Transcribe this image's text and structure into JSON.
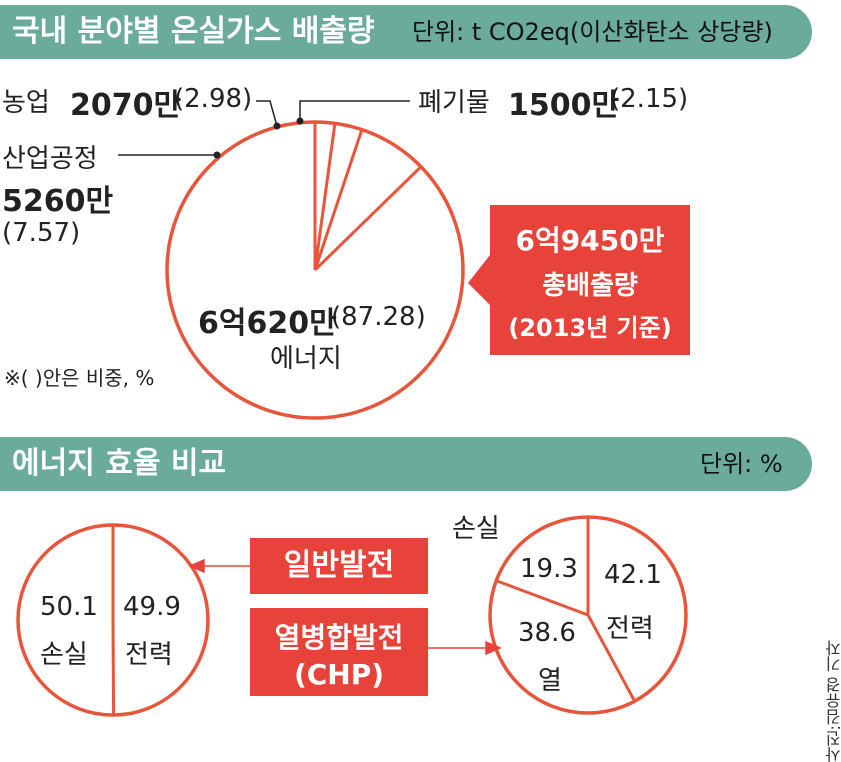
{
  "header1": {
    "title": "국내 분야별 온실가스 배출량",
    "unit": "단위: t CO2eq(이산화탄소 상당량)"
  },
  "header2": {
    "title": "에너지 효율 비교",
    "unit": "단위: %"
  },
  "labels": {
    "agri_name": "농업",
    "agri_value": "2070만",
    "agri_pct": "(2.98)",
    "waste_name": "폐기물",
    "waste_value": "1500만",
    "waste_pct": "(2.15)",
    "industry_name": "산업공정",
    "industry_value": "5260만",
    "industry_pct": "(7.57)",
    "energy_value": "6억620만",
    "energy_pct": "(87.28)",
    "energy_name": "에너지",
    "note": "※(   )안은 비중, %"
  },
  "total_box": {
    "line1": "6억9450만",
    "line2": "총배출량",
    "line3": "(2013년 기준)"
  },
  "efficiency": {
    "general_label": "일반발전",
    "chp_label1": "열병합발전",
    "chp_label2": "(CHP)",
    "left_loss_value": "50.1",
    "left_loss_name": "손실",
    "left_power_value": "49.9",
    "left_power_name": "전력",
    "right_loss_name": "손실",
    "right_loss_value": "19.3",
    "right_power_value": "42.1",
    "right_power_name": "전력",
    "right_heat_value": "38.6",
    "right_heat_name": "열"
  },
  "credit": "사진:김유경 기자",
  "colors": {
    "header": "#6aab9c",
    "accent": "#e8433a",
    "pie_stroke": "#e8553a"
  },
  "chart_data": [
    {
      "type": "pie",
      "title": "국내 분야별 온실가스 배출량",
      "unit": "t CO2eq",
      "categories": [
        "에너지",
        "산업공정",
        "농업",
        "폐기물"
      ],
      "values": [
        87.28,
        7.57,
        2.98,
        2.15
      ],
      "amounts": [
        "6억620만",
        "5260만",
        "2070만",
        "1500만"
      ],
      "total": "6억9450만"
    },
    {
      "type": "pie",
      "title": "일반발전",
      "categories": [
        "손실",
        "전력"
      ],
      "values": [
        50.1,
        49.9
      ]
    },
    {
      "type": "pie",
      "title": "열병합발전(CHP)",
      "categories": [
        "전력",
        "열",
        "손실"
      ],
      "values": [
        42.1,
        38.6,
        19.3
      ]
    }
  ]
}
